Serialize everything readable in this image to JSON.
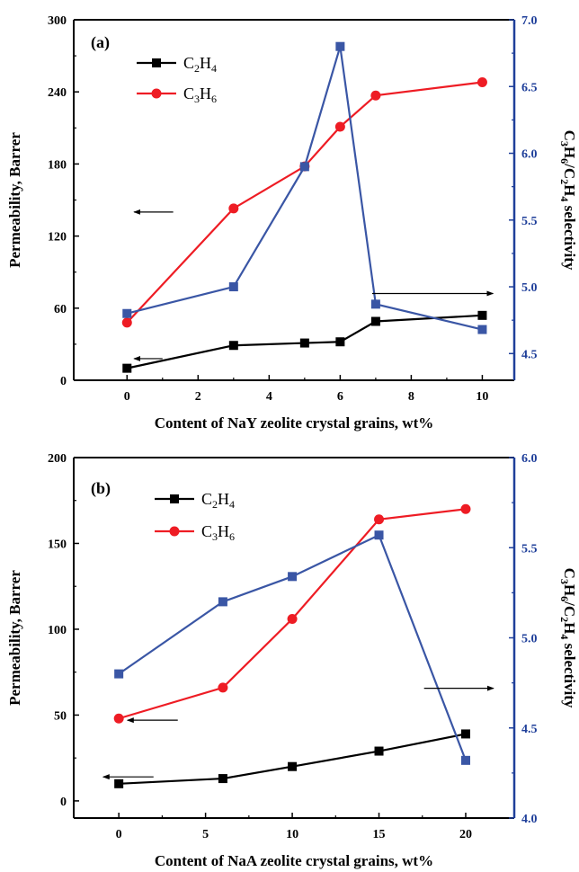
{
  "colors": {
    "c2h4": "#000000",
    "c3h6": "#ee1c24",
    "selectivity": "#3a56a5",
    "right_axis": "#1f3f9a"
  },
  "legend": {
    "c2h4": {
      "base": "C",
      "n1": "2",
      "mid": "H",
      "n2": "4"
    },
    "c3h6": {
      "base": "C",
      "n1": "3",
      "mid": "H",
      "n2": "6"
    }
  },
  "right_axis_label": {
    "a": "C",
    "s1": "3",
    "b": "H",
    "s2": "6",
    "c": "/C",
    "s3": "2",
    "d": "H",
    "s4": "4",
    "rest": " selectivity"
  },
  "chart_data": [
    {
      "type": "line",
      "panel_label": "(a)",
      "xlabel": "Content of NaY zeolite crystal grains, wt%",
      "ylabel": "Permeability, Barrer",
      "y2label": "C3H6/C2H4 selectivity",
      "xlim": [
        -1.5,
        10.9
      ],
      "ylim": [
        0,
        300
      ],
      "y2lim": [
        4.3,
        7.0
      ],
      "xticks": [
        0,
        2,
        4,
        6,
        8,
        10
      ],
      "yticks": [
        0,
        60,
        120,
        180,
        240,
        300
      ],
      "y2ticks": [
        4.5,
        5.0,
        5.5,
        6.0,
        6.5,
        7.0
      ],
      "y2ticklabels": [
        "4.5",
        "5.0",
        "5.5",
        "6.0",
        "6.5",
        "7.0"
      ],
      "x": [
        0,
        3,
        5,
        6,
        7,
        10
      ],
      "series": [
        {
          "name": "C2H4",
          "axis": "left",
          "marker": "square",
          "values": [
            10,
            29,
            31,
            32,
            49,
            54
          ]
        },
        {
          "name": "C3H6",
          "axis": "left",
          "marker": "circle",
          "values": [
            48,
            143,
            178,
            211,
            237,
            248
          ]
        },
        {
          "name": "",
          "axis": "right",
          "marker": "square",
          "values": [
            4.8,
            5.0,
            5.9,
            6.8,
            4.87,
            4.68
          ]
        }
      ],
      "arrows": [
        {
          "x1": 0.2,
          "x2": 1.3,
          "y": 140,
          "axis": "left",
          "direction": "left"
        },
        {
          "x1": 0.2,
          "x2": 1.0,
          "y": 18,
          "axis": "left",
          "direction": "left"
        },
        {
          "x1": 6.9,
          "x2": 10.3,
          "y": 4.95,
          "axis": "right",
          "direction": "right"
        }
      ]
    },
    {
      "type": "line",
      "panel_label": "(b)",
      "xlabel": "Content of NaA zeolite crystal grains, wt%",
      "ylabel": "Permeability, Barrer",
      "y2label": "C3H6/C2H4 selectivity",
      "xlim": [
        -2.6,
        22.8
      ],
      "ylim": [
        -10,
        200
      ],
      "y2lim": [
        4.0,
        6.0
      ],
      "xticks": [
        0,
        5,
        10,
        15,
        20
      ],
      "yticks": [
        0,
        50,
        100,
        150,
        200
      ],
      "y2ticks": [
        4.0,
        4.5,
        5.0,
        5.5,
        6.0
      ],
      "y2ticklabels": [
        "4.0",
        "4.5",
        "5.0",
        "5.5",
        "6.0"
      ],
      "x": [
        0,
        6,
        10,
        15,
        20
      ],
      "series": [
        {
          "name": "C2H4",
          "axis": "left",
          "marker": "square",
          "values": [
            10,
            13,
            20,
            29,
            39
          ]
        },
        {
          "name": "C3H6",
          "axis": "left",
          "marker": "circle",
          "values": [
            48,
            66,
            106,
            164,
            170
          ]
        },
        {
          "name": "",
          "axis": "right",
          "marker": "square",
          "values": [
            4.8,
            5.2,
            5.34,
            5.57,
            4.32
          ]
        }
      ],
      "arrows": [
        {
          "x1": 0.5,
          "x2": 3.4,
          "y": 47,
          "axis": "left",
          "direction": "left"
        },
        {
          "x1": -0.9,
          "x2": 2.0,
          "y": 14,
          "axis": "left",
          "direction": "left"
        },
        {
          "x1": 17.6,
          "x2": 21.6,
          "y": 4.72,
          "axis": "right",
          "direction": "right"
        }
      ]
    }
  ]
}
